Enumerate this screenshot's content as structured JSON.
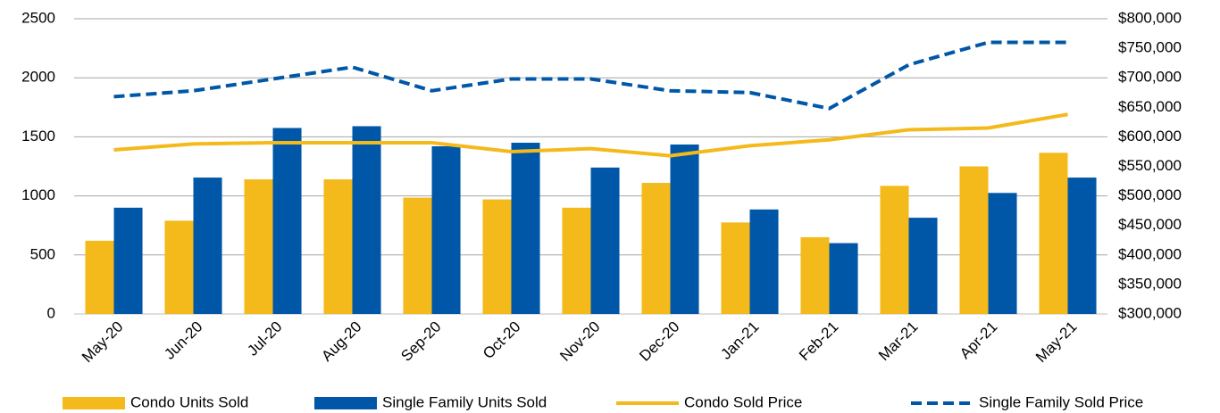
{
  "chart_data": {
    "type": "bar",
    "categories": [
      "May-20",
      "Jun-20",
      "Jul-20",
      "Aug-20",
      "Sep-20",
      "Oct-20",
      "Nov-20",
      "Dec-20",
      "Jan-21",
      "Feb-21",
      "Mar-21",
      "Apr-21",
      "May-21"
    ],
    "series": [
      {
        "name": "Condo Units Sold",
        "type": "bar",
        "color": "#f4b91a",
        "values": [
          620,
          790,
          1140,
          1140,
          985,
          970,
          900,
          1110,
          775,
          650,
          1085,
          1250,
          1365
        ]
      },
      {
        "name": "Single Family Units Sold",
        "type": "bar",
        "color": "#0057a8",
        "values": [
          900,
          1155,
          1575,
          1590,
          1420,
          1450,
          1240,
          1435,
          885,
          600,
          815,
          1025,
          1155
        ]
      },
      {
        "name": "Condo Sold Price",
        "type": "line",
        "axis": "y2",
        "color": "#f4b91a",
        "values": [
          578000,
          588000,
          590000,
          590000,
          590000,
          575000,
          580000,
          568000,
          585000,
          595000,
          612000,
          615000,
          638000
        ]
      },
      {
        "name": "Single Family Sold Price",
        "type": "line",
        "axis": "y2",
        "dashed": true,
        "color": "#0057a8",
        "values": [
          668000,
          678000,
          698000,
          718000,
          678000,
          698000,
          698000,
          678000,
          675000,
          648000,
          722000,
          760000,
          760000
        ]
      }
    ],
    "ylim": [
      0,
      2500
    ],
    "yticks": [
      0,
      500,
      1000,
      1500,
      2000,
      2500
    ],
    "y2lim": [
      300000,
      800000
    ],
    "y2ticks": [
      {
        "value": 300000,
        "label": "$300,000"
      },
      {
        "value": 350000,
        "label": "$350,000"
      },
      {
        "value": 400000,
        "label": "$400,000"
      },
      {
        "value": 450000,
        "label": "$450,000"
      },
      {
        "value": 500000,
        "label": "$500,000"
      },
      {
        "value": 550000,
        "label": "$550,000"
      },
      {
        "value": 600000,
        "label": "$600,000"
      },
      {
        "value": 650000,
        "label": "$650,000"
      },
      {
        "value": 700000,
        "label": "$700,000"
      },
      {
        "value": 750000,
        "label": "$750,000"
      },
      {
        "value": 800000,
        "label": "$800,000"
      }
    ],
    "grid": true,
    "legend": "bottom"
  }
}
